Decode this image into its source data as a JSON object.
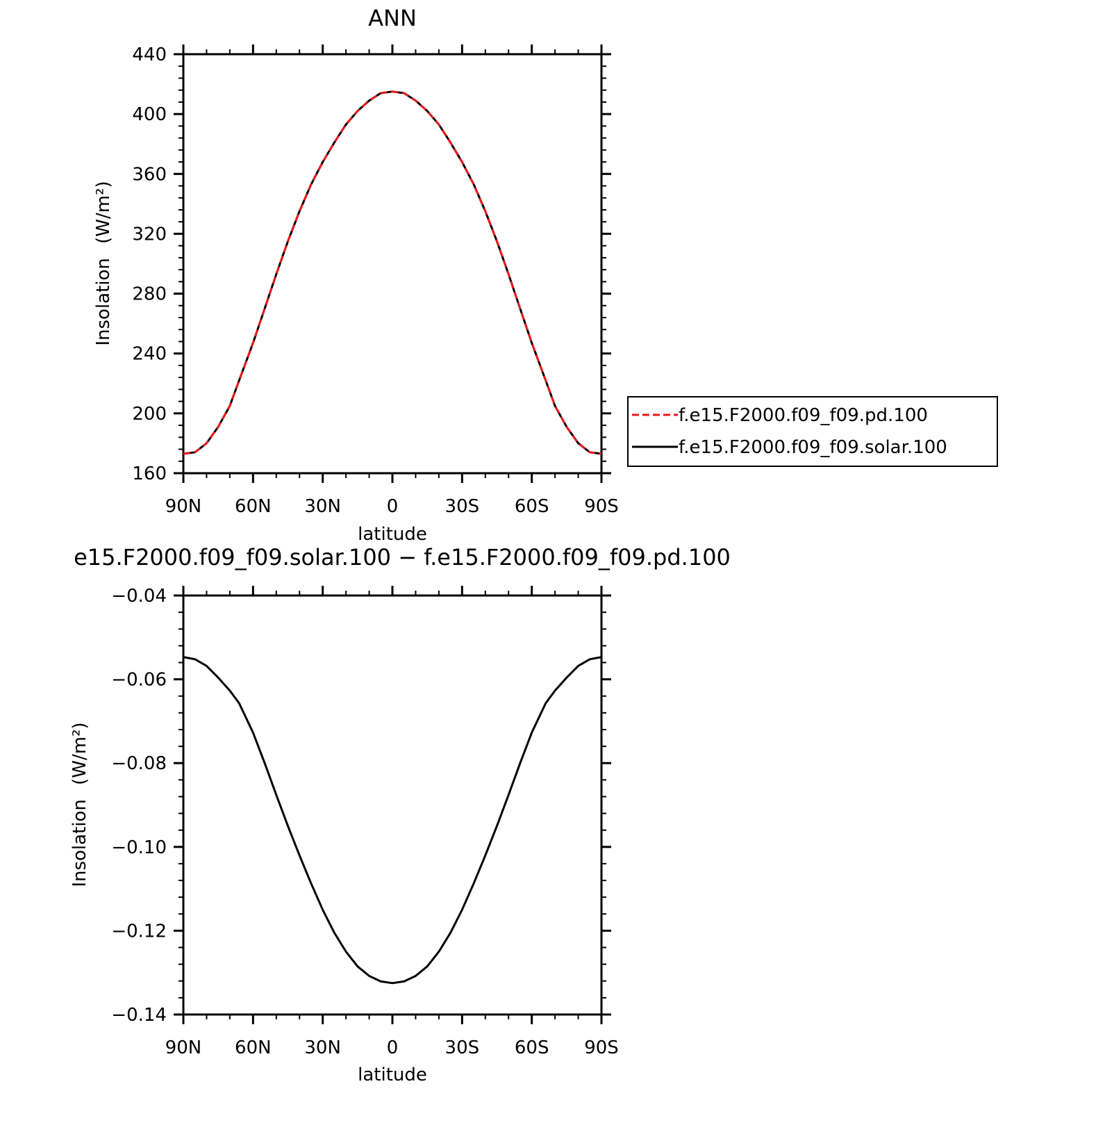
{
  "chart_data": [
    {
      "type": "line",
      "title": "ANN",
      "xlabel": "latitude",
      "ylabel": "Insolation",
      "ylabel_units": "(W/m²)",
      "xlim": [
        -90,
        90
      ],
      "ylim": [
        160,
        440
      ],
      "x_ticks": [
        -90,
        -60,
        -30,
        0,
        30,
        60,
        90
      ],
      "x_tick_labels": [
        "90N",
        "60N",
        "30N",
        "0",
        "30S",
        "60S",
        "90S"
      ],
      "y_ticks": [
        160,
        200,
        240,
        280,
        320,
        360,
        400,
        440
      ],
      "y_tick_labels": [
        "160",
        "200",
        "240",
        "280",
        "320",
        "360",
        "400",
        "440"
      ],
      "x": [
        -90,
        -85,
        -80,
        -75,
        -70,
        -66,
        -60,
        -55,
        -50,
        -45,
        -40,
        -35,
        -30,
        -25,
        -20,
        -15,
        -10,
        -5,
        0,
        5,
        10,
        15,
        20,
        25,
        30,
        35,
        40,
        45,
        50,
        55,
        60,
        66,
        70,
        75,
        80,
        85,
        90
      ],
      "series": [
        {
          "name": "f.e15.F2000.f09_f09.pd.100",
          "color": "#e8191b",
          "dash": "dashed",
          "values": [
            173,
            174,
            180,
            191,
            205,
            222,
            247,
            270,
            293,
            315,
            335,
            353,
            368,
            381,
            393,
            402,
            409,
            414,
            415,
            414,
            409,
            402,
            393,
            381,
            368,
            353,
            335,
            315,
            293,
            270,
            247,
            222,
            205,
            191,
            180,
            174,
            173
          ]
        },
        {
          "name": "f.e15.F2000.f09_f09.solar.100",
          "color": "#000000",
          "dash": "solid",
          "values": [
            173,
            174,
            180,
            191,
            205,
            222,
            247,
            270,
            293,
            315,
            335,
            353,
            368,
            381,
            393,
            402,
            409,
            414,
            415,
            414,
            409,
            402,
            393,
            381,
            368,
            353,
            335,
            315,
            293,
            270,
            247,
            222,
            205,
            191,
            180,
            174,
            173
          ]
        }
      ],
      "legend": {
        "placement": "right",
        "entries": [
          "f.e15.F2000.f09_f09.pd.100",
          "f.e15.F2000.f09_f09.solar.100"
        ]
      }
    },
    {
      "type": "line",
      "title": "e15.F2000.f09_f09.solar.100 − f.e15.F2000.f09_f09.pd.100",
      "xlabel": "latitude",
      "ylabel": "Insolation",
      "ylabel_units": "(W/m²)",
      "xlim": [
        -90,
        90
      ],
      "ylim": [
        -0.14,
        -0.04
      ],
      "x_ticks": [
        -90,
        -60,
        -30,
        0,
        30,
        60,
        90
      ],
      "x_tick_labels": [
        "90N",
        "60N",
        "30N",
        "0",
        "30S",
        "60S",
        "90S"
      ],
      "y_ticks": [
        -0.14,
        -0.12,
        -0.1,
        -0.08,
        -0.06,
        -0.04
      ],
      "y_tick_labels": [
        "−0.14",
        "−0.12",
        "−0.10",
        "−0.08",
        "−0.06",
        "−0.04"
      ],
      "x": [
        -90,
        -85,
        -80,
        -75,
        -70,
        -66,
        -60,
        -55,
        -50,
        -45,
        -40,
        -35,
        -30,
        -25,
        -20,
        -15,
        -10,
        -5,
        0,
        5,
        10,
        15,
        20,
        25,
        30,
        35,
        40,
        45,
        50,
        55,
        60,
        66,
        70,
        75,
        80,
        85,
        90
      ],
      "series": [
        {
          "color": "#000000",
          "dash": "solid",
          "values": [
            -0.0547,
            -0.0552,
            -0.0568,
            -0.0596,
            -0.0627,
            -0.0657,
            -0.0727,
            -0.08,
            -0.0876,
            -0.095,
            -0.102,
            -0.1087,
            -0.115,
            -0.1205,
            -0.125,
            -0.1285,
            -0.1308,
            -0.1321,
            -0.1325,
            -0.1321,
            -0.1308,
            -0.1285,
            -0.125,
            -0.1205,
            -0.115,
            -0.1087,
            -0.102,
            -0.095,
            -0.0876,
            -0.08,
            -0.0727,
            -0.0657,
            -0.0627,
            -0.0596,
            -0.0568,
            -0.0552,
            -0.0547
          ]
        }
      ]
    }
  ]
}
